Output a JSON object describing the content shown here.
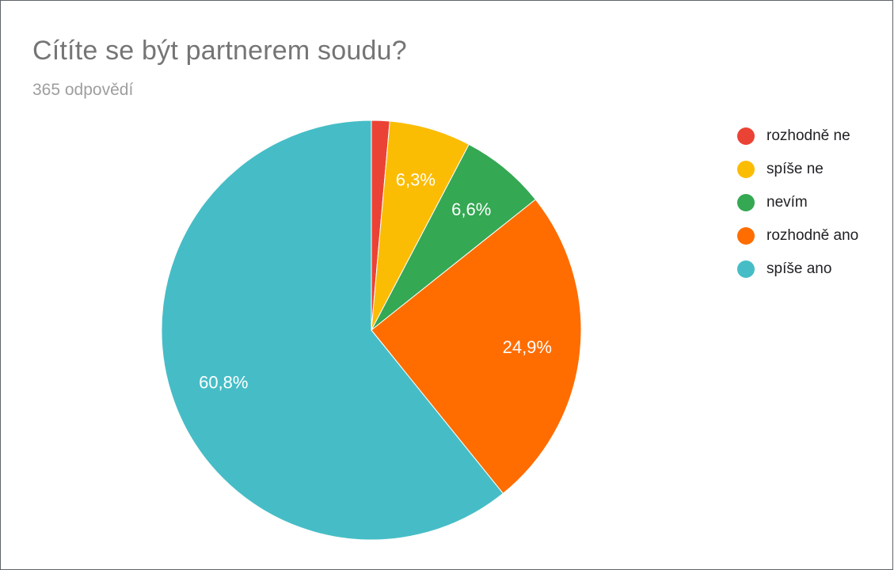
{
  "chart_data": {
    "type": "pie",
    "title": "Cítíte se být partnerem soudu?",
    "subtitle": "365 odpovědí",
    "legend_position": "right",
    "slices": [
      {
        "name": "rozhodně ne",
        "value": 1.4,
        "label": "",
        "color": "#EA4335"
      },
      {
        "name": "spíše ne",
        "value": 6.3,
        "label": "6,3%",
        "color": "#FBBC04"
      },
      {
        "name": "nevím",
        "value": 6.6,
        "label": "6,6%",
        "color": "#34A853"
      },
      {
        "name": "rozhodně ano",
        "value": 24.9,
        "label": "24,9%",
        "color": "#FF6D01"
      },
      {
        "name": "spíše ano",
        "value": 60.8,
        "label": "60,8%",
        "color": "#46BDC6"
      }
    ]
  }
}
